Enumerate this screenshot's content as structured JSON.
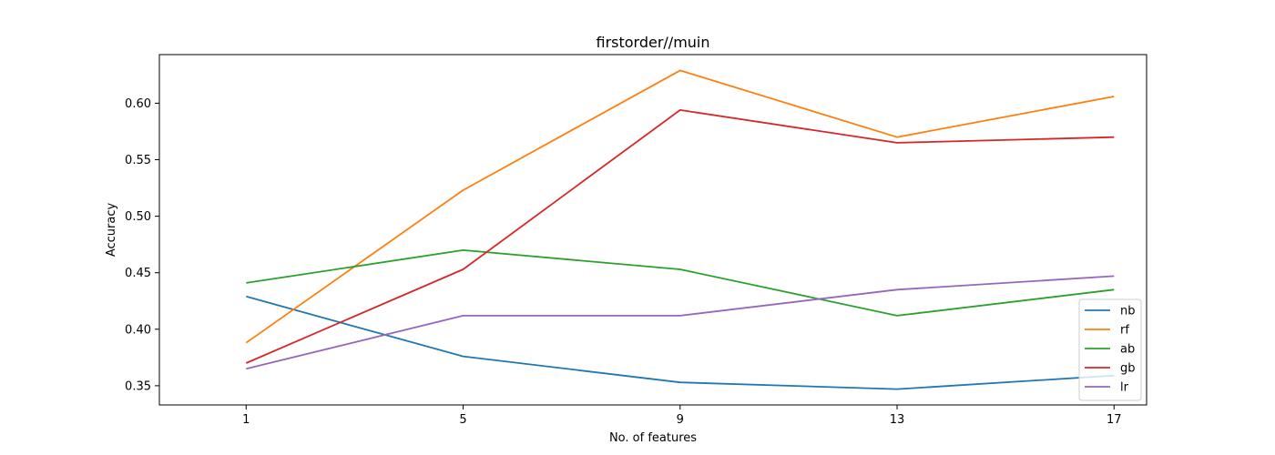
{
  "chart_data": {
    "type": "line",
    "title": "firstorder//muin",
    "xlabel": "No. of features",
    "ylabel": "Accuracy",
    "x": [
      1,
      5,
      9,
      13,
      17
    ],
    "x_ticks": [
      "1",
      "5",
      "9",
      "13",
      "17"
    ],
    "y_ticks": [
      "0.35",
      "0.40",
      "0.45",
      "0.50",
      "0.55",
      "0.60"
    ],
    "y_tick_values": [
      0.35,
      0.4,
      0.45,
      0.5,
      0.55,
      0.6
    ],
    "xlim": [
      -0.6,
      17.6
    ],
    "ylim": [
      0.333,
      0.643
    ],
    "grid": false,
    "legend_position": "lower right",
    "series": [
      {
        "name": "nb",
        "color": "#1f77b4",
        "values": [
          0.429,
          0.376,
          0.353,
          0.347,
          0.359
        ]
      },
      {
        "name": "rf",
        "color": "#ff7f0e",
        "values": [
          0.388,
          0.523,
          0.629,
          0.57,
          0.606
        ]
      },
      {
        "name": "ab",
        "color": "#2ca02c",
        "values": [
          0.441,
          0.47,
          0.453,
          0.412,
          0.435
        ]
      },
      {
        "name": "gb",
        "color": "#d62728",
        "values": [
          0.37,
          0.453,
          0.594,
          0.565,
          0.57
        ]
      },
      {
        "name": "lr",
        "color": "#9467bd",
        "values": [
          0.365,
          0.412,
          0.412,
          0.435,
          0.447
        ]
      }
    ]
  }
}
